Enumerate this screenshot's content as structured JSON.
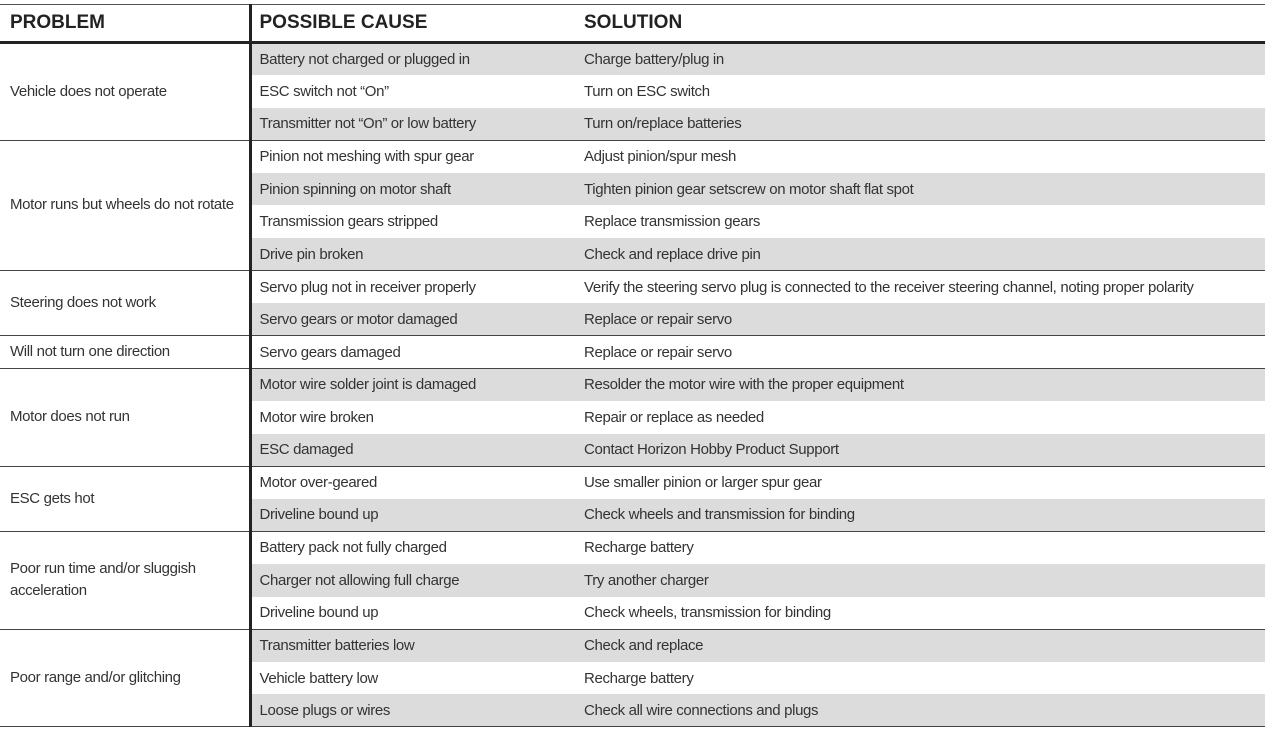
{
  "header": {
    "columns": [
      "PROBLEM",
      "POSSIBLE CAUSE",
      "SOLUTION"
    ]
  },
  "groups": [
    {
      "problem": "Vehicle does not operate",
      "rows": [
        [
          "Battery not charged or plugged in",
          "Charge battery/plug in"
        ],
        [
          "ESC switch not “On”",
          "Turn on ESC switch"
        ],
        [
          "Transmitter not “On” or low battery",
          "Turn on/replace batteries"
        ]
      ]
    },
    {
      "problem": "Motor runs but wheels do not rotate",
      "rows": [
        [
          "Pinion not meshing with spur gear",
          "Adjust pinion/spur mesh"
        ],
        [
          "Pinion spinning on motor shaft",
          "Tighten pinion gear setscrew on motor shaft flat spot"
        ],
        [
          "Transmission gears stripped",
          "Replace transmission gears"
        ],
        [
          "Drive pin broken",
          "Check and replace drive pin"
        ]
      ]
    },
    {
      "problem": "Steering does not work",
      "rows": [
        [
          "Servo plug not in receiver properly",
          "Verify the steering servo plug is connected to the receiver steering channel, noting proper polarity"
        ],
        [
          "Servo gears or motor damaged",
          "Replace or repair servo"
        ]
      ]
    },
    {
      "problem": "Will not turn one direction",
      "rows": [
        [
          "Servo gears damaged",
          "Replace or repair servo"
        ]
      ]
    },
    {
      "problem": "Motor does not run",
      "rows": [
        [
          "Motor wire solder joint is damaged",
          "Resolder the motor wire with the proper equipment"
        ],
        [
          "Motor wire broken",
          "Repair or replace as needed"
        ],
        [
          "ESC damaged",
          "Contact Horizon Hobby Product Support"
        ]
      ]
    },
    {
      "problem": "ESC gets hot",
      "rows": [
        [
          "Motor over-geared",
          "Use smaller pinion or larger spur gear"
        ],
        [
          "Driveline bound up",
          "Check wheels and transmission for binding"
        ]
      ]
    },
    {
      "problem": "Poor run time and/or sluggish acceleration",
      "rows": [
        [
          "Battery pack not fully charged",
          "Recharge battery"
        ],
        [
          "Charger not allowing full charge",
          "Try another charger"
        ],
        [
          "Driveline bound up",
          "Check wheels, transmission for binding"
        ]
      ]
    },
    {
      "problem": "Poor range and/or glitching",
      "rows": [
        [
          "Transmitter batteries low",
          "Check and replace"
        ],
        [
          "Vehicle battery low",
          "Recharge battery"
        ],
        [
          "Loose plugs or wires",
          "Check all wire connections and plugs"
        ]
      ]
    }
  ]
}
